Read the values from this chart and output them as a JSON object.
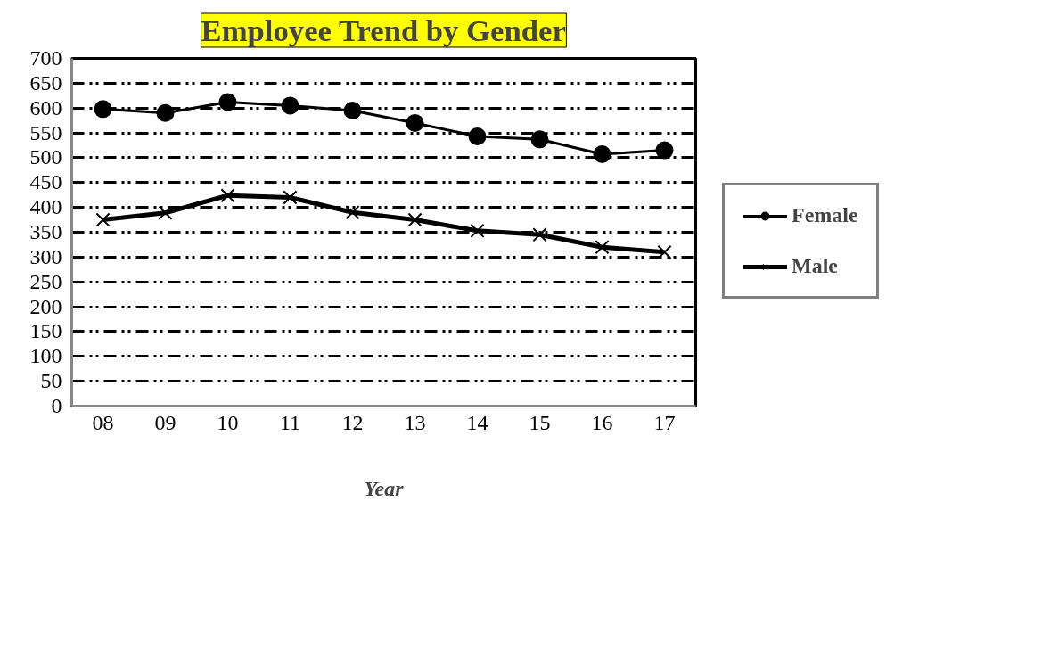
{
  "chart_data": {
    "type": "line",
    "title": "Employee Trend by Gender",
    "xlabel": "Year",
    "categories": [
      "08",
      "09",
      "10",
      "11",
      "12",
      "13",
      "14",
      "15",
      "16",
      "17"
    ],
    "series": [
      {
        "name": "Female",
        "color": "#000000",
        "marker": "circle",
        "values": [
          598,
          590,
          612,
          605,
          595,
          570,
          543,
          537,
          507,
          515
        ]
      },
      {
        "name": "Male",
        "color": "#000000",
        "marker": "x",
        "values": [
          375,
          389,
          424,
          420,
          390,
          375,
          353,
          345,
          320,
          310
        ]
      }
    ],
    "ylim": [
      0,
      700
    ],
    "yticks": [
      0,
      50,
      100,
      150,
      200,
      250,
      300,
      350,
      400,
      450,
      500,
      550,
      600,
      650,
      700
    ],
    "grid": "y",
    "legend": "right"
  }
}
